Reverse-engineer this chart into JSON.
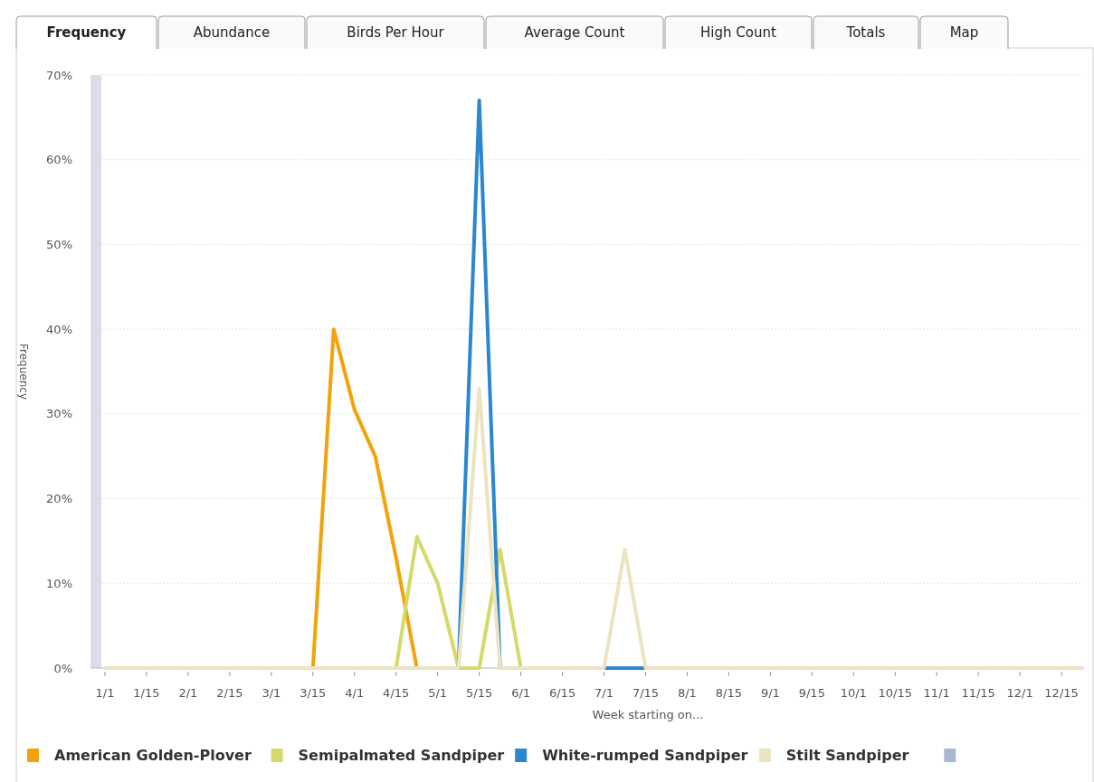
{
  "chart_data": {
    "type": "line",
    "xlabel": "Week starting on...",
    "ylabel": "Frequency",
    "annotations": [
      "Frequency",
      "Abundance",
      "Birds Per Hour",
      "Average Count",
      "High Count",
      "Totals",
      "Map"
    ],
    "categories": [
      "1/1",
      null,
      "1/15",
      null,
      "2/1",
      null,
      "2/15",
      null,
      "3/1",
      null,
      "3/15",
      null,
      "4/1",
      null,
      "4/15",
      null,
      "5/1",
      null,
      "5/15",
      null,
      "6/1",
      null,
      "6/15",
      null,
      "7/1",
      null,
      "7/15",
      null,
      "8/1",
      null,
      "8/15",
      null,
      "9/1",
      null,
      "9/15",
      null,
      "10/1",
      null,
      "10/15",
      null,
      "11/1",
      null,
      "11/15",
      null,
      "12/1",
      null,
      "12/15",
      null
    ],
    "ylim": [
      0,
      70
    ],
    "yticks": [
      {
        "value": 0,
        "label": "0%"
      },
      {
        "value": 10,
        "label": "10%"
      },
      {
        "value": 20,
        "label": "20%"
      },
      {
        "value": 30,
        "label": "30%"
      },
      {
        "value": 40,
        "label": "40%"
      },
      {
        "value": 50,
        "label": "50%"
      },
      {
        "value": 60,
        "label": "60%"
      },
      {
        "value": 70,
        "label": "70%"
      }
    ],
    "grid": "y",
    "legend": "bottom",
    "marker": "none",
    "line_style": "solid",
    "series": [
      {
        "name": "American Golden-Plover",
        "color": "#f0a30a",
        "values": [
          null,
          null,
          null,
          null,
          null,
          null,
          null,
          null,
          null,
          null,
          0,
          40,
          30.5,
          25,
          13,
          0,
          null,
          null,
          null,
          null,
          null,
          null,
          null,
          null,
          null,
          null,
          null,
          null,
          null,
          null,
          null,
          null,
          null,
          null,
          null,
          null,
          null,
          null,
          null,
          null,
          null,
          null,
          null,
          null,
          null,
          null,
          null,
          null
        ]
      },
      {
        "name": "Semipalmated Sandpiper",
        "color": "#d4d96a",
        "values": [
          null,
          null,
          null,
          null,
          null,
          null,
          null,
          null,
          null,
          null,
          null,
          null,
          null,
          null,
          0,
          15.5,
          10,
          0,
          0,
          14,
          0,
          null,
          null,
          null,
          null,
          null,
          null,
          null,
          null,
          null,
          null,
          null,
          null,
          null,
          null,
          null,
          null,
          null,
          null,
          null,
          null,
          null,
          null,
          null,
          null,
          null,
          null,
          null
        ]
      },
      {
        "name": "White-rumped Sandpiper",
        "color": "#2a87d0",
        "values": [
          null,
          null,
          null,
          null,
          null,
          null,
          null,
          null,
          null,
          null,
          null,
          null,
          null,
          null,
          null,
          null,
          null,
          0,
          67,
          0,
          null,
          null,
          null,
          null,
          0,
          0,
          0,
          null,
          null,
          null,
          null,
          null,
          null,
          null,
          null,
          null,
          null,
          null,
          null,
          null,
          null,
          null,
          null,
          null,
          null,
          null,
          null,
          null
        ]
      },
      {
        "name": "Stilt Sandpiper",
        "color": "#ece3c0",
        "values": [
          0,
          0,
          0,
          0,
          0,
          0,
          0,
          0,
          0,
          0,
          0,
          0,
          0,
          0,
          0,
          0,
          0,
          0,
          33,
          0,
          0,
          0,
          0,
          0,
          0,
          14,
          0,
          0,
          0,
          0,
          0,
          0,
          0,
          0,
          0,
          0,
          0,
          0,
          0,
          0,
          0,
          0,
          0,
          0,
          0,
          0,
          0,
          0
        ]
      }
    ]
  }
}
